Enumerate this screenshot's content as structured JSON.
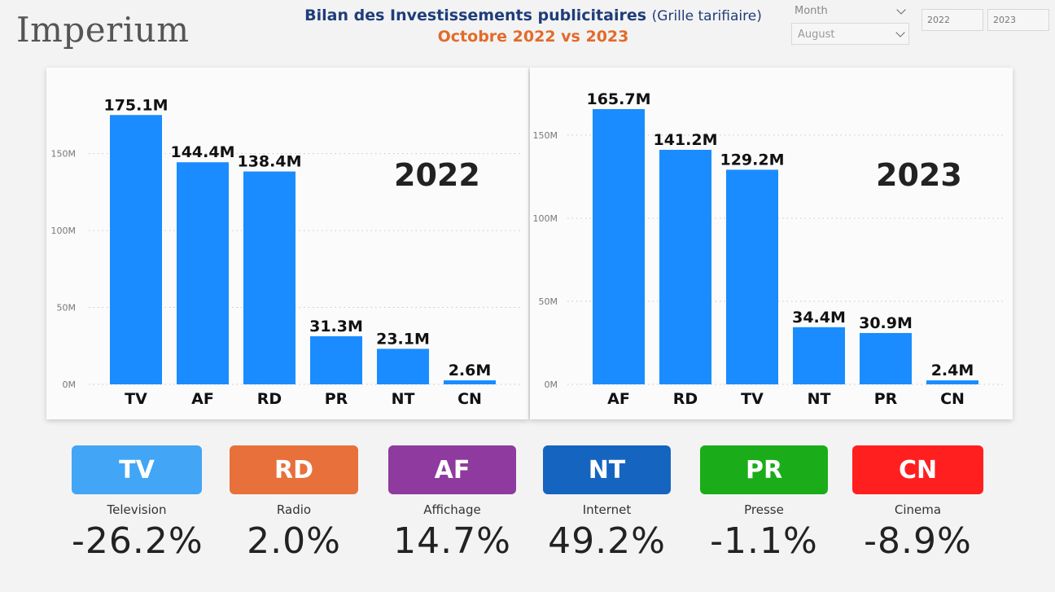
{
  "header": {
    "logo": "Imperium",
    "title": "Bilan des Investissements publicitaires",
    "title_paren": "(Grille tarifiaire)",
    "subtitle": "Octobre 2022 vs 2023"
  },
  "filters": {
    "month_label": "Month",
    "month_value": "August",
    "year_a": "2022",
    "year_b": "2023"
  },
  "chart_data": [
    {
      "type": "bar",
      "title": "2022",
      "categories": [
        "TV",
        "AF",
        "RD",
        "PR",
        "NT",
        "CN"
      ],
      "values": [
        175.1,
        144.4,
        138.4,
        31.3,
        23.1,
        2.6
      ],
      "labels": [
        "175.1M",
        "144.4M",
        "138.4M",
        "31.3M",
        "23.1M",
        "2.6M"
      ],
      "yticks": [
        0,
        50,
        100,
        150
      ],
      "ytick_labels": [
        "0M",
        "50M",
        "100M",
        "150M"
      ],
      "ylim": [
        0,
        180
      ],
      "grid": true,
      "color": "#1a8cff"
    },
    {
      "type": "bar",
      "title": "2023",
      "categories": [
        "AF",
        "RD",
        "TV",
        "NT",
        "PR",
        "CN"
      ],
      "values": [
        165.7,
        141.2,
        129.2,
        34.4,
        30.9,
        2.4
      ],
      "labels": [
        "165.7M",
        "141.2M",
        "129.2M",
        "34.4M",
        "30.9M",
        "2.4M"
      ],
      "yticks": [
        0,
        50,
        100,
        150
      ],
      "ytick_labels": [
        "0M",
        "50M",
        "100M",
        "150M"
      ],
      "ylim": [
        0,
        165.7
      ],
      "grid": true,
      "color": "#1a8cff"
    }
  ],
  "kpis": [
    {
      "code": "TV",
      "name": "Television",
      "change": "-26.2%",
      "color": "#42a5f5"
    },
    {
      "code": "RD",
      "name": "Radio",
      "change": "2.0%",
      "color": "#e8703a"
    },
    {
      "code": "AF",
      "name": "Affichage",
      "change": "14.7%",
      "color": "#8e3a9e"
    },
    {
      "code": "NT",
      "name": "Internet",
      "change": "49.2%",
      "color": "#1565c0"
    },
    {
      "code": "PR",
      "name": "Presse",
      "change": "-1.1%",
      "color": "#1aad19"
    },
    {
      "code": "CN",
      "name": "Cinema",
      "change": "-8.9%",
      "color": "#ff1f1f"
    }
  ]
}
